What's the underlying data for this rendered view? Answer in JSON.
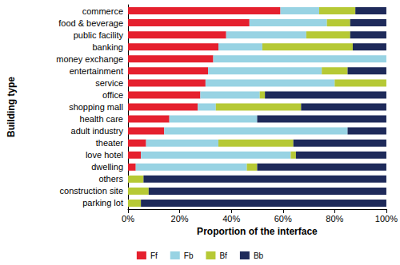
{
  "chart_data": {
    "type": "bar",
    "orientation": "horizontal",
    "stacked": true,
    "x_label": "Proportion of the interface",
    "y_label": "Building type",
    "categories": [
      "commerce",
      "food & beverage",
      "public facility",
      "banking",
      "money exchange",
      "entertainment",
      "service",
      "office",
      "shopping mall",
      "health care",
      "adult industry",
      "theater",
      "love hotel",
      "dwelling",
      "others",
      "construction site",
      "parking lot"
    ],
    "series": [
      {
        "name": "Ff",
        "color": "#e5202e",
        "values": [
          59,
          47,
          38,
          35,
          33,
          31,
          30,
          28,
          27,
          16,
          14,
          7,
          5,
          3,
          0,
          0,
          0
        ]
      },
      {
        "name": "Fb",
        "color": "#98d3e3",
        "values": [
          15,
          30,
          31,
          17,
          67,
          44,
          50,
          23,
          7,
          34,
          71,
          28,
          58,
          43,
          0,
          0,
          0
        ]
      },
      {
        "name": "Bf",
        "color": "#b6c935",
        "values": [
          14,
          9,
          17,
          35,
          0,
          10,
          20,
          2,
          33,
          0,
          0,
          29,
          2,
          4,
          6,
          8,
          5
        ]
      },
      {
        "name": "Bb",
        "color": "#1e2a5a",
        "values": [
          12,
          14,
          14,
          13,
          0,
          15,
          0,
          47,
          33,
          50,
          15,
          36,
          35,
          50,
          94,
          92,
          95
        ]
      }
    ],
    "xlim": [
      0,
      100
    ],
    "xticks": [
      {
        "value": 0,
        "label": "0%"
      },
      {
        "value": 20,
        "label": "20%"
      },
      {
        "value": 40,
        "label": "40%"
      },
      {
        "value": 60,
        "label": "60%"
      },
      {
        "value": 80,
        "label": "80%"
      },
      {
        "value": 100,
        "label": "100%"
      }
    ],
    "grid": false,
    "legend": "bottom"
  }
}
